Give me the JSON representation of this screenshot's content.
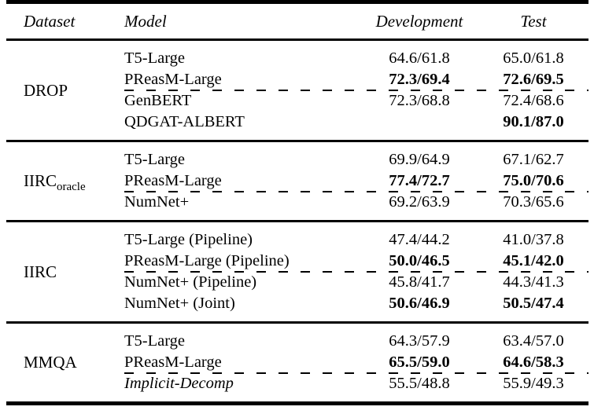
{
  "header": {
    "dataset": "Dataset",
    "model": "Model",
    "development": "Development",
    "test": "Test"
  },
  "groups": [
    {
      "dataset": "DROP",
      "rows": [
        {
          "model": "T5-Large",
          "dev": "64.6/61.8",
          "test": "65.0/61.8"
        },
        {
          "model": "PReasM-Large",
          "dev": "72.3/69.4",
          "test": "72.6/69.5"
        },
        {
          "model": "GenBERT",
          "dev": "72.3/68.8",
          "test": "72.4/68.6"
        },
        {
          "model": "QDGAT-ALBERT",
          "dev": "",
          "test": "90.1/87.0"
        }
      ]
    },
    {
      "dataset": "IIRC",
      "dataset_sub": "oracle",
      "rows": [
        {
          "model": "T5-Large",
          "dev": "69.9/64.9",
          "test": "67.1/62.7"
        },
        {
          "model": "PReasM-Large",
          "dev": "77.4/72.7",
          "test": "75.0/70.6"
        },
        {
          "model": "NumNet+",
          "dev": "69.2/63.9",
          "test": "70.3/65.6"
        }
      ]
    },
    {
      "dataset": "IIRC",
      "rows": [
        {
          "model": "T5-Large (Pipeline)",
          "dev": "47.4/44.2",
          "test": "41.0/37.8"
        },
        {
          "model": "PReasM-Large (Pipeline)",
          "dev": "50.0/46.5",
          "test": "45.1/42.0"
        },
        {
          "model": "NumNet+ (Pipeline)",
          "dev": "45.8/41.7",
          "test": "44.3/41.3"
        },
        {
          "model": "NumNet+ (Joint)",
          "dev": "50.6/46.9",
          "test": "50.5/47.4"
        }
      ]
    },
    {
      "dataset": "MMQA",
      "rows": [
        {
          "model": "T5-Large",
          "dev": "64.3/57.9",
          "test": "63.4/57.0"
        },
        {
          "model": "PReasM-Large",
          "dev": "65.5/59.0",
          "test": "64.6/58.3"
        },
        {
          "model": "Implicit-Decomp",
          "dev": "55.5/48.8",
          "test": "55.9/49.3"
        }
      ]
    }
  ],
  "colors": {
    "text": "#000000",
    "background": "#ffffff",
    "rule": "#000000"
  }
}
